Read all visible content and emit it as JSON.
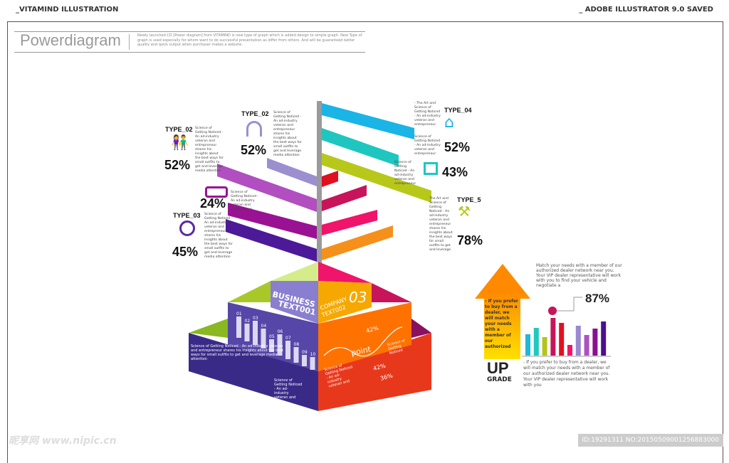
{
  "header": {
    "left": "_VITAMIND ILLUSTRATION",
    "right": "_ ADOBE ILLUSTRATOR 9.0 SAVED"
  },
  "title": "Powerdiagram",
  "intro": "Newly launched CD [Power diagram] from VITAMIND is new type of graph which is added design to simple graph. New Type of graph is used especially for whom want to do successful presentation as differ from others. And will be guaranteed better quality and quick output when purchaser makes a website.",
  "left_items": [
    {
      "type": "TYPE_02",
      "pct": "52%",
      "icon": "people-icon",
      "text": "Science of Getting Noticed - An ad-industry veteran and entrepreneur shares his insights about the best ways for small outfits to get and leverage media attention"
    },
    {
      "type": "TYPE_02",
      "pct": "52%",
      "icon": "headphones-icon",
      "text": "Science of Getting Noticed - An ad-industry veteran and entrepreneur shares his insights about the best ways for small outfits to get and leverage media attention"
    },
    {
      "type": "",
      "pct": "24%",
      "icon": "joystick-icon",
      "text": "Science of Getting Noticed - An ad-industry veteran and entrepreneur"
    },
    {
      "type": "TYPE_03",
      "pct": "45%",
      "icon": "magnifier-icon",
      "text": "Science of Getting Noticed - An ad-industry veteran and entrepreneur shares his insights about the best ways for small outfits to get and leverage media attention"
    }
  ],
  "right_items": [
    {
      "type": "TYPE_04",
      "pct": "52%",
      "icon": "house-icon",
      "text": "- The Art and Science of Getting Noticed - An ad-industry veteran and entrepreneur",
      "text2": "Science of Getting Noticed - An ad-industry veteran and entrepreneur"
    },
    {
      "type": "",
      "pct": "43%",
      "icon": "tools-icon",
      "text": "Science of Getting Noticed - An ad-industry veteran and entrepreneur"
    },
    {
      "type": "TYPE_5",
      "pct": "78%",
      "icon": "wrench-icon",
      "text": "The Art and Science of Getting Noticed - An ad-industry veteran and entrepreneur shares his insights about the best ways for small outfits to get and leverage"
    }
  ],
  "pyramid": {
    "business": "BUSINESS",
    "text001": "TEXT001",
    "company": "COMPANY",
    "text002": "TEXT002",
    "num": "03",
    "bar_labels": [
      "01",
      "02",
      "03",
      "04",
      "05",
      "06",
      "07",
      "08",
      "09",
      "10"
    ],
    "left_text1": "Science of Getting Noticed - An ad-industry veteran and entrepreneur shares his insights about the best ways for small outfits to get and leverage media attention",
    "left_text2": "Science of Getting Noticed - An ad-industry veteran and",
    "point": "point",
    "pct1": "42%",
    "pct2": "42%",
    "pct3": "36%",
    "right_text": "Science of Getting Noticed - An ad-industry veteran and",
    "science": "Science of Getting Noticed"
  },
  "upgrade": {
    "arrow_text": "- If you prefer to buy from a dealer, we will match your needs with a member of our authorized",
    "up": "UP",
    "grade": "GRADE",
    "top_text": "Match your needs with a member of our authorized dealer network near you. Your VIP dealer representative will work with you to find your vehicle and negotiate a",
    "pct": "87%",
    "bottom_text": "- If you prefer to buy from a dealer, we will match your needs with a member of our authorized dealer network near you. Your VIP dealer representative will work with you",
    "bars": [
      30,
      39,
      26,
      53,
      46,
      15,
      42,
      29,
      38,
      48
    ],
    "bar_colors": [
      "#1fb8d8",
      "#20c8c0",
      "#b6c41a",
      "#c8145a",
      "#e01020",
      "#f0146a",
      "#9a88d0",
      "#b050c0",
      "#8a1090",
      "#4a1090"
    ]
  },
  "watermark": "昵享网 www.nipic.cn",
  "id_text": "ID:19291311 NO:20150509001256883000"
}
